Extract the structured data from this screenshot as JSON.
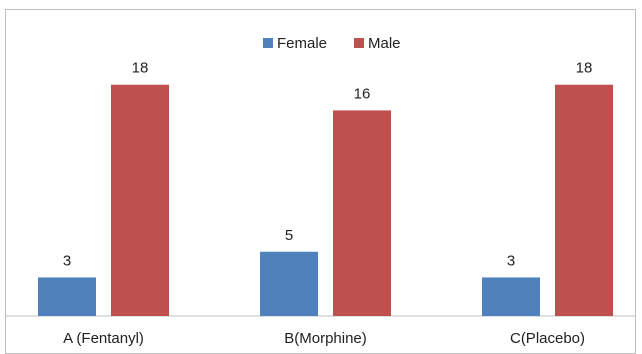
{
  "chart_data": {
    "type": "bar",
    "title": "",
    "xlabel": "",
    "ylabel": "",
    "categories": [
      "A (Fentanyl)",
      "B(Morphine)",
      "C(Placebo)"
    ],
    "series": [
      {
        "name": "Female",
        "color": "#4f81bd",
        "values": [
          3,
          5,
          3
        ]
      },
      {
        "name": "Male",
        "color": "#c0504d",
        "values": [
          18,
          16,
          18
        ]
      }
    ],
    "ylim": [
      0,
      20
    ],
    "legend_position": "top",
    "data_labels": true,
    "grid": false
  }
}
